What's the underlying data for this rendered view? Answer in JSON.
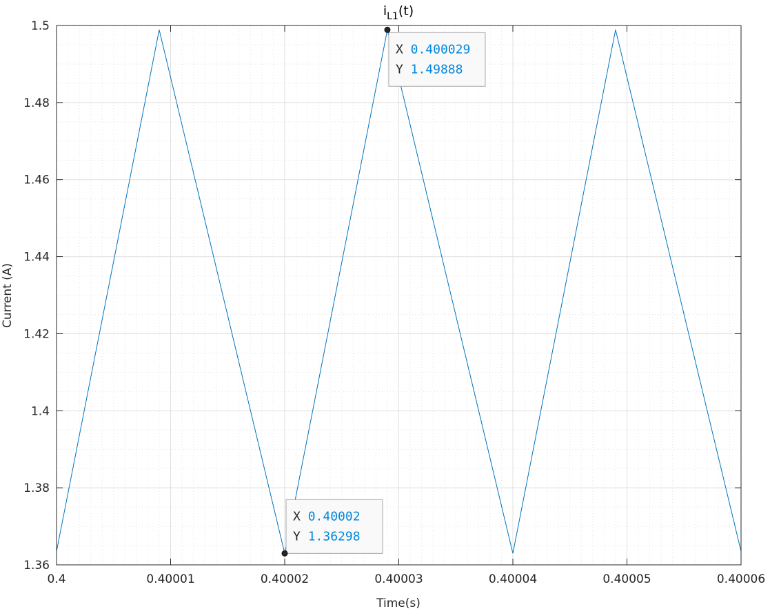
{
  "chart_data": {
    "type": "line",
    "title": {
      "main": "i",
      "subscript": "L1",
      "suffix": "(t)"
    },
    "xlabel": "Time(s)",
    "ylabel": "Current (A)",
    "xlim": [
      0.4,
      0.40006
    ],
    "ylim": [
      1.36,
      1.5
    ],
    "xticks": [
      0.4,
      0.40001,
      0.40002,
      0.40003,
      0.40004,
      0.40005,
      0.40006
    ],
    "xtick_labels": [
      "0.4",
      "0.40001",
      "0.40002",
      "0.40003",
      "0.40004",
      "0.40005",
      "0.40006"
    ],
    "yticks": [
      1.36,
      1.38,
      1.4,
      1.42,
      1.44,
      1.46,
      1.48,
      1.5
    ],
    "ytick_labels": [
      "1.36",
      "1.38",
      "1.4",
      "1.42",
      "1.44",
      "1.46",
      "1.48",
      "1.5"
    ],
    "grid": true,
    "minor_grid": true,
    "series": [
      {
        "color": "#0072bd",
        "x": [
          0.4,
          0.400009,
          0.40002,
          0.400029,
          0.40004,
          0.400049,
          0.40006
        ],
        "y": [
          1.3635,
          1.49888,
          1.36298,
          1.49888,
          1.36298,
          1.49888,
          1.3635
        ]
      }
    ],
    "datatips": [
      {
        "x_label": "X",
        "x_value": "0.40002",
        "y_label": "Y",
        "y_value": "1.36298",
        "x": 0.40002,
        "y": 1.36298
      },
      {
        "x_label": "X",
        "x_value": "0.400029",
        "y_label": "Y",
        "y_value": "1.49888",
        "x": 0.400029,
        "y": 1.49888
      }
    ],
    "colors": {
      "line": "#0072bd",
      "datatip_value": "#0088dd",
      "datatip_label": "#262626",
      "grid": "#dfdfdf"
    }
  }
}
